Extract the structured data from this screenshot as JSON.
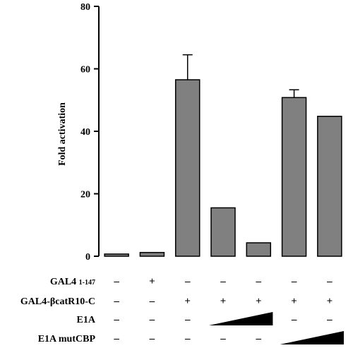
{
  "chart_data": {
    "type": "bar",
    "ylabel": "Fold activation",
    "ylim": [
      0,
      80
    ],
    "yticks": [
      0,
      20,
      40,
      60,
      80
    ],
    "values": [
      0.7,
      1.2,
      56.5,
      15.5,
      4.3,
      50.8,
      44.8
    ],
    "error_upper": [
      null,
      null,
      64.5,
      null,
      null,
      53.3,
      null
    ],
    "grid": false,
    "rows": [
      {
        "label": "GAL4 1-147",
        "label_main": "GAL4",
        "label_sub": "1-147",
        "signs": [
          "-",
          "+",
          "-",
          "-",
          "-",
          "-",
          "-"
        ]
      },
      {
        "label": "GAL4-βcatR10-C",
        "signs": [
          "-",
          "-",
          "+",
          "+",
          "+",
          "+",
          "+"
        ]
      },
      {
        "label": "E1A",
        "signs": [
          "-",
          "-",
          "-",
          "",
          "",
          "-",
          "-"
        ],
        "ramp_over_bars": [
          4,
          5
        ]
      },
      {
        "label": "E1A mutCBP",
        "signs": [
          "-",
          "-",
          "-",
          "-",
          "-",
          "",
          ""
        ],
        "ramp_over_bars": [
          6,
          7
        ]
      }
    ]
  }
}
